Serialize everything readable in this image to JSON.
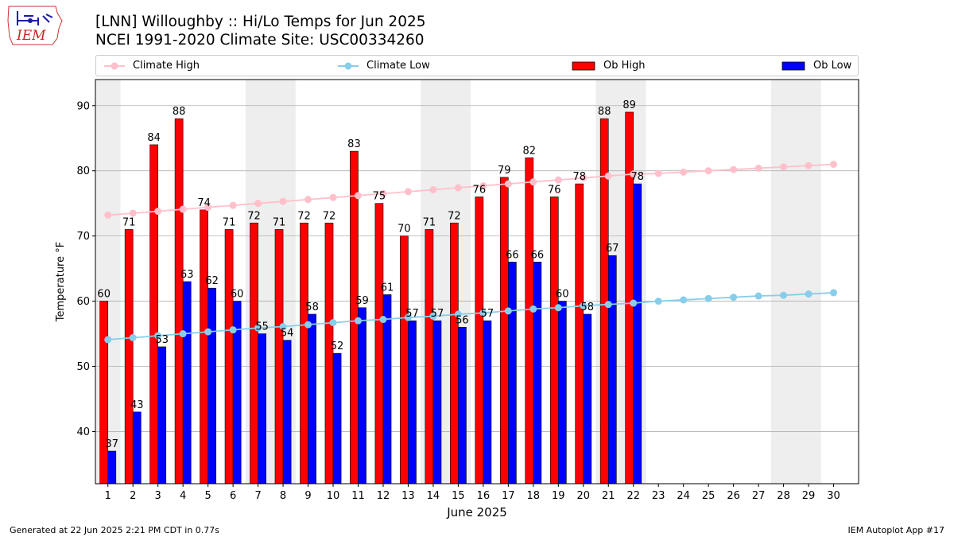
{
  "header": {
    "title_line1": "[LNN] Willoughby :: Hi/Lo Temps for Jun 2025",
    "title_line2": "NCEI 1991-2020 Climate Site: USC00334260",
    "logo_text": "IEM"
  },
  "footer": {
    "generated": "Generated at 22 Jun 2025 2:21 PM CDT in 0.77s",
    "app": "IEM Autoplot App #17"
  },
  "legend": {
    "climate_high": "Climate High",
    "climate_low": "Climate Low",
    "ob_high": "Ob High",
    "ob_low": "Ob Low"
  },
  "colors": {
    "climate_high": "#ffc0cb",
    "climate_low": "#87ceeb",
    "ob_high": "#ff0000",
    "ob_low": "#0000ff",
    "weekend": "#eeeeee",
    "grid": "#b0b0b0"
  },
  "chart_data": {
    "type": "bar",
    "xlabel": "June 2025",
    "ylabel": "Temperature °F",
    "ylim": [
      32,
      94
    ],
    "yticks": [
      40,
      50,
      60,
      70,
      80,
      90
    ],
    "grid": "horizontal",
    "days": [
      1,
      2,
      3,
      4,
      5,
      6,
      7,
      8,
      9,
      10,
      11,
      12,
      13,
      14,
      15,
      16,
      17,
      18,
      19,
      20,
      21,
      22,
      23,
      24,
      25,
      26,
      27,
      28,
      29,
      30
    ],
    "weekend_spans": [
      [
        1,
        1
      ],
      [
        7,
        8
      ],
      [
        14,
        15
      ],
      [
        21,
        22
      ],
      [
        28,
        29
      ]
    ],
    "series": [
      {
        "name": "Ob High",
        "kind": "bar",
        "values": [
          60,
          71,
          84,
          88,
          74,
          71,
          72,
          71,
          72,
          72,
          83,
          75,
          70,
          71,
          72,
          76,
          79,
          82,
          76,
          78,
          88,
          89
        ],
        "labels": [
          "60",
          "71",
          "84",
          "88",
          "74",
          "71",
          "72",
          "71",
          "72",
          "72",
          "83",
          "75",
          "70",
          "71",
          "72",
          "76",
          "79",
          "82",
          "76",
          "78",
          "88",
          "89"
        ]
      },
      {
        "name": "Ob Low",
        "kind": "bar",
        "values": [
          37,
          43,
          53,
          63,
          62,
          60,
          55,
          54,
          58,
          52,
          59,
          61,
          57,
          57,
          56,
          57,
          66,
          66,
          60,
          58,
          67,
          78
        ],
        "labels": [
          "37",
          "43",
          "53",
          "63",
          "62",
          "60",
          "55",
          "54",
          "58",
          "52",
          "59",
          "61",
          "57",
          "57",
          "56",
          "57",
          "66",
          "66",
          "60",
          "58",
          "67",
          "78"
        ]
      },
      {
        "name": "Climate High",
        "kind": "line",
        "values": [
          73.2,
          73.5,
          73.8,
          74.1,
          74.4,
          74.7,
          75.0,
          75.3,
          75.6,
          75.9,
          76.2,
          76.5,
          76.8,
          77.1,
          77.4,
          77.7,
          78.0,
          78.3,
          78.6,
          78.9,
          79.2,
          79.5,
          79.6,
          79.8,
          80.0,
          80.2,
          80.4,
          80.6,
          80.8,
          81.0
        ]
      },
      {
        "name": "Climate Low",
        "kind": "line",
        "values": [
          54.1,
          54.4,
          54.7,
          55.0,
          55.3,
          55.6,
          55.9,
          56.1,
          56.4,
          56.7,
          57.0,
          57.2,
          57.5,
          57.7,
          58.0,
          58.2,
          58.5,
          58.8,
          59.0,
          59.3,
          59.5,
          59.7,
          60.0,
          60.2,
          60.4,
          60.6,
          60.8,
          60.9,
          61.1,
          61.3
        ]
      }
    ]
  }
}
